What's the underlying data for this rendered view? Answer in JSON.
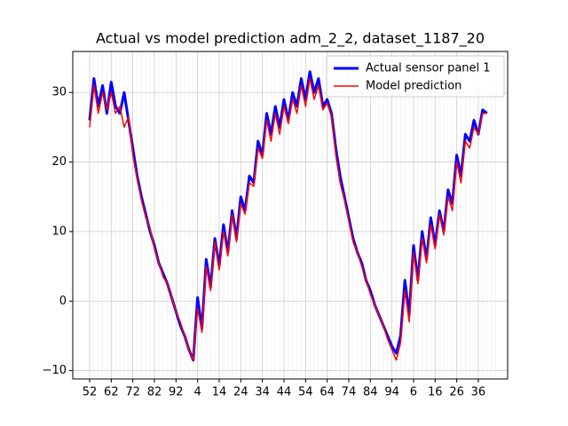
{
  "chart_data": {
    "type": "line",
    "title": "Actual vs model prediction adm_2_2, dataset_1187_20",
    "categories": [
      "52",
      null,
      null,
      null,
      null,
      "62",
      null,
      null,
      null,
      null,
      "72",
      null,
      null,
      null,
      null,
      "82",
      null,
      null,
      null,
      null,
      "92",
      null,
      null,
      null,
      null,
      "4",
      null,
      null,
      null,
      null,
      "14",
      null,
      null,
      null,
      null,
      "24",
      null,
      null,
      null,
      null,
      "34",
      null,
      null,
      null,
      null,
      "44",
      null,
      null,
      null,
      null,
      "54",
      null,
      null,
      null,
      null,
      "64",
      null,
      null,
      null,
      null,
      "74",
      null,
      null,
      null,
      null,
      "84",
      null,
      null,
      null,
      null,
      "94",
      null,
      null,
      null,
      null,
      "6",
      null,
      null,
      null,
      null,
      "16",
      null,
      null,
      null,
      null,
      "26",
      null,
      null,
      null,
      null,
      "36",
      null,
      null
    ],
    "series": [
      {
        "name": "Actual sensor panel 1",
        "color": "#0000ff",
        "values": [
          26,
          32,
          28,
          31,
          27,
          31.5,
          28,
          27,
          30,
          26,
          22,
          18,
          15,
          12.5,
          10,
          8,
          5.5,
          4,
          2.5,
          0.5,
          -1.5,
          -3.5,
          -5,
          -7,
          -8.5,
          0.5,
          -4,
          6,
          2,
          9,
          5,
          11,
          7,
          13,
          9,
          15,
          13,
          18,
          17,
          23,
          21,
          27,
          24,
          28,
          25,
          29,
          26,
          30,
          28,
          32,
          29,
          33,
          30,
          32,
          28,
          29,
          27,
          22,
          18,
          15,
          12,
          9,
          7,
          5.5,
          3,
          1.5,
          -0.5,
          -2,
          -3.5,
          -5,
          -6.5,
          -7.5,
          -5,
          3,
          -2,
          8,
          3,
          10,
          6,
          12,
          8,
          13,
          10,
          16,
          14,
          21,
          18,
          24,
          23,
          26,
          24,
          27.5,
          27
        ]
      },
      {
        "name": "Model prediction",
        "color": "#ff0000",
        "values": [
          25,
          31,
          27,
          30,
          27.5,
          30,
          27,
          28,
          25,
          26.5,
          21,
          17.5,
          14.5,
          12,
          10.5,
          7.5,
          5.5,
          3.5,
          2.5,
          0.5,
          -1.5,
          -3,
          -5,
          -7,
          -8.5,
          -1,
          -4.5,
          5,
          1.5,
          8.5,
          4.5,
          10,
          6.5,
          12.5,
          8.5,
          14,
          12.5,
          17,
          16.5,
          22,
          20.5,
          26,
          23,
          27,
          24,
          28,
          25.5,
          29,
          27,
          31,
          28,
          32,
          29,
          31,
          27.5,
          28.5,
          26.5,
          21,
          17,
          14.5,
          11.5,
          8.5,
          7,
          5,
          3,
          1,
          -0.5,
          -2,
          -3.5,
          -5.5,
          -7,
          -8.5,
          -6,
          1.5,
          -3,
          7,
          2.5,
          9,
          5.5,
          11,
          7.5,
          12.5,
          9.5,
          15,
          13,
          20,
          17,
          23,
          22,
          25,
          24,
          27,
          27
        ]
      }
    ],
    "ylim": [
      -11.2,
      35.9
    ],
    "yticks": [
      {
        "value": -10,
        "label": "−10"
      },
      0,
      10,
      20,
      30
    ],
    "grid": true,
    "legend": "upper right"
  }
}
